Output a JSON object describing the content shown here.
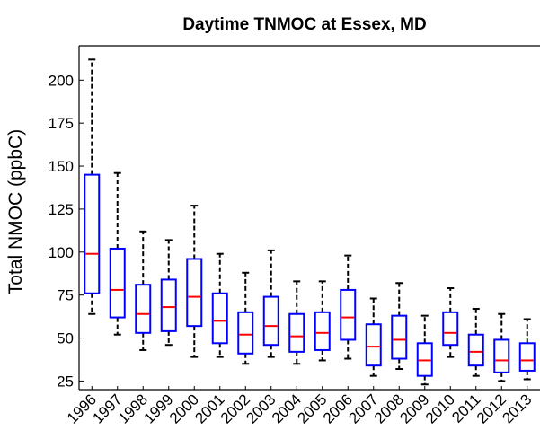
{
  "chart_data": {
    "type": "box",
    "title": "Daytime TNMOC at Essex, MD",
    "xlabel": "",
    "ylabel": "Total NMOC (ppbC)",
    "ylim": [
      20,
      220
    ],
    "yticks": [
      25,
      50,
      75,
      100,
      125,
      150,
      175,
      200
    ],
    "grid": false,
    "categories": [
      "1996",
      "1997",
      "1998",
      "1999",
      "2000",
      "2001",
      "2002",
      "2003",
      "2004",
      "2005",
      "2006",
      "2007",
      "2008",
      "2009",
      "2010",
      "2011",
      "2012",
      "2013"
    ],
    "boxes": [
      {
        "whisker_low": 64,
        "q1": 76,
        "median": 99,
        "q3": 145,
        "whisker_high": 212
      },
      {
        "whisker_low": 52,
        "q1": 62,
        "median": 78,
        "q3": 102,
        "whisker_high": 146
      },
      {
        "whisker_low": 43,
        "q1": 53,
        "median": 64,
        "q3": 81,
        "whisker_high": 112
      },
      {
        "whisker_low": 46,
        "q1": 54,
        "median": 68,
        "q3": 84,
        "whisker_high": 107
      },
      {
        "whisker_low": 39,
        "q1": 57,
        "median": 74,
        "q3": 96,
        "whisker_high": 127
      },
      {
        "whisker_low": 39,
        "q1": 47,
        "median": 60,
        "q3": 76,
        "whisker_high": 99
      },
      {
        "whisker_low": 35,
        "q1": 41,
        "median": 52,
        "q3": 65,
        "whisker_high": 88
      },
      {
        "whisker_low": 39,
        "q1": 46,
        "median": 57,
        "q3": 74,
        "whisker_high": 101
      },
      {
        "whisker_low": 35,
        "q1": 42,
        "median": 51,
        "q3": 64,
        "whisker_high": 83
      },
      {
        "whisker_low": 37,
        "q1": 43,
        "median": 53,
        "q3": 65,
        "whisker_high": 83
      },
      {
        "whisker_low": 38,
        "q1": 49,
        "median": 62,
        "q3": 78,
        "whisker_high": 98
      },
      {
        "whisker_low": 28,
        "q1": 34,
        "median": 45,
        "q3": 58,
        "whisker_high": 73
      },
      {
        "whisker_low": 32,
        "q1": 38,
        "median": 49,
        "q3": 63,
        "whisker_high": 82
      },
      {
        "whisker_low": 23,
        "q1": 28,
        "median": 37,
        "q3": 47,
        "whisker_high": 63
      },
      {
        "whisker_low": 39,
        "q1": 46,
        "median": 53,
        "q3": 65,
        "whisker_high": 79
      },
      {
        "whisker_low": 28,
        "q1": 34,
        "median": 42,
        "q3": 52,
        "whisker_high": 67
      },
      {
        "whisker_low": 25,
        "q1": 30,
        "median": 37,
        "q3": 49,
        "whisker_high": 64
      },
      {
        "whisker_low": 26,
        "q1": 31,
        "median": 37,
        "q3": 47,
        "whisker_high": 61
      }
    ],
    "colors": {
      "box": "#0000ff",
      "median": "#ff0000",
      "whisker": "#000000",
      "axes": "#000000"
    }
  }
}
